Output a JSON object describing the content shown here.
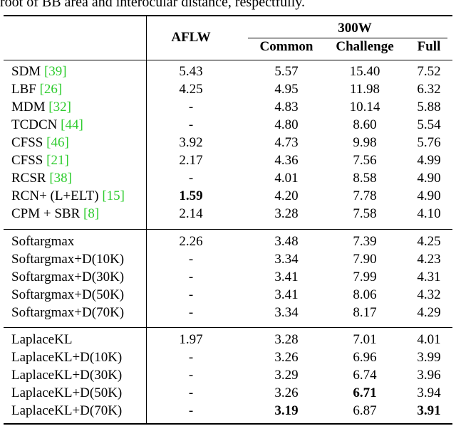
{
  "caption": "root of BB area and interocular distance, respectfully.",
  "headers": {
    "aflw": "AFLW",
    "group": "300W",
    "common": "Common",
    "challenge": "Challenge",
    "full": "Full"
  },
  "sections": [
    {
      "rows": [
        {
          "method": "SDM ",
          "ref": "[39]",
          "aflw": "5.43",
          "common": "5.57",
          "challenge": "15.40",
          "full": "7.52"
        },
        {
          "method": "LBF ",
          "ref": "[26]",
          "aflw": "4.25",
          "common": "4.95",
          "challenge": "11.98",
          "full": "6.32"
        },
        {
          "method": "MDM ",
          "ref": "[32]",
          "aflw": "-",
          "common": "4.83",
          "challenge": "10.14",
          "full": "5.88"
        },
        {
          "method": "TCDCN ",
          "ref": "[44]",
          "aflw": "-",
          "common": "4.80",
          "challenge": "8.60",
          "full": "5.54"
        },
        {
          "method": "CFSS ",
          "ref": "[46]",
          "aflw": "3.92",
          "common": "4.73",
          "challenge": "9.98",
          "full": "5.76"
        },
        {
          "method": "CFSS ",
          "ref": "[21]",
          "aflw": "2.17",
          "common": "4.36",
          "challenge": "7.56",
          "full": "4.99"
        },
        {
          "method": "RCSR ",
          "ref": "[38]",
          "aflw": "-",
          "common": "4.01",
          "challenge": "8.58",
          "full": "4.90"
        },
        {
          "method": "RCN+ (L+ELT) ",
          "ref": "[15]",
          "aflw": "1.59",
          "aflw_bold": true,
          "common": "4.20",
          "challenge": "7.78",
          "full": "4.90"
        },
        {
          "method": "CPM + SBR ",
          "ref": "[8]",
          "aflw": "2.14",
          "common": "3.28",
          "challenge": "7.58",
          "full": "4.10"
        }
      ]
    },
    {
      "rows": [
        {
          "method": "Softargmax",
          "ref": "",
          "aflw": "2.26",
          "common": "3.48",
          "challenge": "7.39",
          "full": "4.25"
        },
        {
          "method": "Softargmax+D(10K)",
          "ref": "",
          "aflw": "-",
          "common": "3.34",
          "challenge": "7.90",
          "full": "4.23"
        },
        {
          "method": "Softargmax+D(30K)",
          "ref": "",
          "aflw": "-",
          "common": "3.41",
          "challenge": "7.99",
          "full": "4.31"
        },
        {
          "method": "Softargmax+D(50K)",
          "ref": "",
          "aflw": "-",
          "common": "3.41",
          "challenge": "8.06",
          "full": "4.32"
        },
        {
          "method": "Softargmax+D(70K)",
          "ref": "",
          "aflw": "-",
          "common": "3.34",
          "challenge": "8.17",
          "full": "4.29"
        }
      ]
    },
    {
      "rows": [
        {
          "method": "LaplaceKL",
          "ref": "",
          "aflw": "1.97",
          "common": "3.28",
          "challenge": "7.01",
          "full": "4.01"
        },
        {
          "method": "LaplaceKL+D(10K)",
          "ref": "",
          "aflw": "-",
          "common": "3.26",
          "challenge": "6.96",
          "full": "3.99"
        },
        {
          "method": "LaplaceKL+D(30K)",
          "ref": "",
          "aflw": "-",
          "common": "3.29",
          "challenge": "6.74",
          "full": "3.96"
        },
        {
          "method": "LaplaceKL+D(50K)",
          "ref": "",
          "aflw": "-",
          "common": "3.26",
          "challenge": "6.71",
          "challenge_bold": true,
          "full": "3.94"
        },
        {
          "method": "LaplaceKL+D(70K)",
          "ref": "",
          "aflw": "-",
          "common": "3.19",
          "common_bold": true,
          "challenge": "6.87",
          "full": "3.91",
          "full_bold": true
        }
      ]
    }
  ]
}
